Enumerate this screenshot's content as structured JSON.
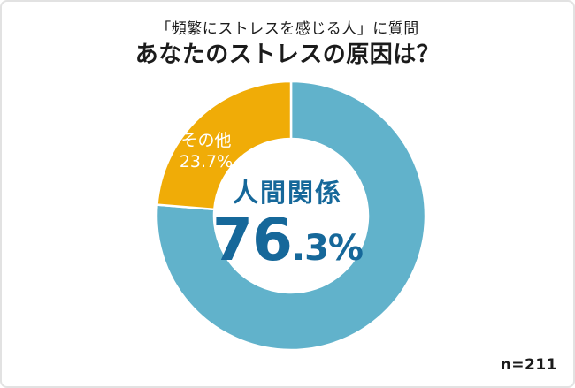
{
  "frame": {
    "background": "#ffffff",
    "border_color": "#e2e2e2"
  },
  "header": {
    "context_line": "「頻繁にストレスを感じる人」に質問",
    "question_line": "あなたのストレスの原因は？"
  },
  "footer": {
    "sample_size": "n=211"
  },
  "chart_data": {
    "type": "pie",
    "variant": "donut",
    "title": "あなたのストレスの原因は？",
    "subtitle": "「頻繁にストレスを感じる人」に質問",
    "categories": [
      "人間関係",
      "その他"
    ],
    "values": [
      76.3,
      23.7
    ],
    "unit": "%",
    "colors": [
      "#61b2cb",
      "#f0ac07"
    ],
    "start_angle": "12-oclock",
    "direction": "clockwise",
    "donut_hole_ratio": 0.57,
    "segment_gap_color": "#ffffff",
    "legend_position": "none",
    "sample_size": 211,
    "labels": {
      "center": {
        "category": "人間関係",
        "value_main": "76",
        "value_suffix": ".3%",
        "value_full": "76.3%",
        "color": "#16689a"
      },
      "other": {
        "category": "その他",
        "value_text": "23.7%",
        "color": "#ffffff"
      }
    }
  }
}
